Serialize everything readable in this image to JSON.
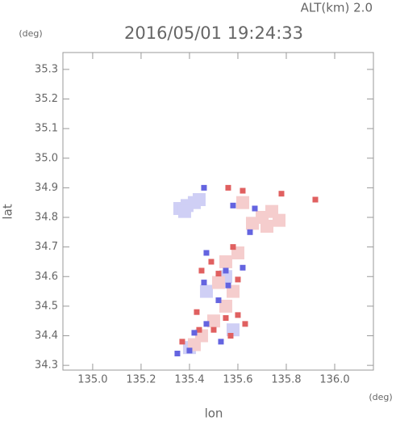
{
  "chart_data": {
    "type": "scatter",
    "title": "2016/05/01 19:24:33",
    "subtitle": "ALT(km) 2.0",
    "y_unit": "(deg)",
    "x_unit": "(deg)",
    "xlabel": "lon",
    "ylabel": "lat",
    "xlim": [
      134.877,
      136.16
    ],
    "ylim": [
      34.284,
      35.357
    ],
    "xticks": [
      {
        "value": 135,
        "label": "135.0"
      },
      135.2,
      135.4,
      135.6,
      135.8,
      {
        "value": 136,
        "label": "136.0"
      }
    ],
    "yticks": [
      34.3,
      34.4,
      34.5,
      34.6,
      34.7,
      34.8,
      34.9,
      {
        "value": 35,
        "label": "35.0"
      },
      35.1,
      35.2,
      35.3
    ],
    "series": [
      {
        "color": "#cfcff5",
        "marker_size": 16,
        "x": [
          135.36,
          135.39,
          135.42,
          135.44,
          135.38,
          135.55,
          135.47,
          135.58,
          135.4
        ],
        "values": [
          34.83,
          34.84,
          34.85,
          34.86,
          34.82,
          34.6,
          34.55,
          34.42,
          34.36
        ]
      },
      {
        "color": "#f5cdcd",
        "marker_size": 16,
        "x": [
          135.7,
          135.74,
          135.77,
          135.72,
          135.66,
          135.55,
          135.6,
          135.52,
          135.58,
          135.55,
          135.5,
          135.45,
          135.42,
          135.62
        ],
        "values": [
          34.8,
          34.82,
          34.79,
          34.77,
          34.78,
          34.65,
          34.68,
          34.58,
          34.55,
          34.5,
          34.45,
          34.4,
          34.37,
          34.85
        ]
      },
      {
        "color": "#e06060",
        "marker_size": 7,
        "x": [
          135.78,
          135.56,
          135.62,
          135.49,
          135.58,
          135.45,
          135.52,
          135.6,
          135.43,
          135.55,
          135.6,
          135.5,
          135.57,
          135.63,
          135.37,
          135.44,
          135.92
        ],
        "values": [
          34.88,
          34.9,
          34.89,
          34.65,
          34.7,
          34.62,
          34.61,
          34.59,
          34.48,
          34.46,
          34.47,
          34.42,
          34.4,
          34.44,
          34.38,
          34.42,
          34.86
        ]
      },
      {
        "color": "#6464e0",
        "marker_size": 7,
        "x": [
          135.46,
          135.58,
          135.67,
          135.47,
          135.55,
          135.52,
          135.47,
          135.42,
          135.53,
          135.35,
          135.4,
          135.56,
          135.62,
          135.46,
          135.65
        ],
        "values": [
          34.9,
          34.84,
          34.83,
          34.68,
          34.62,
          34.52,
          34.44,
          34.41,
          34.38,
          34.34,
          34.35,
          34.57,
          34.63,
          34.58,
          34.75
        ]
      }
    ]
  }
}
